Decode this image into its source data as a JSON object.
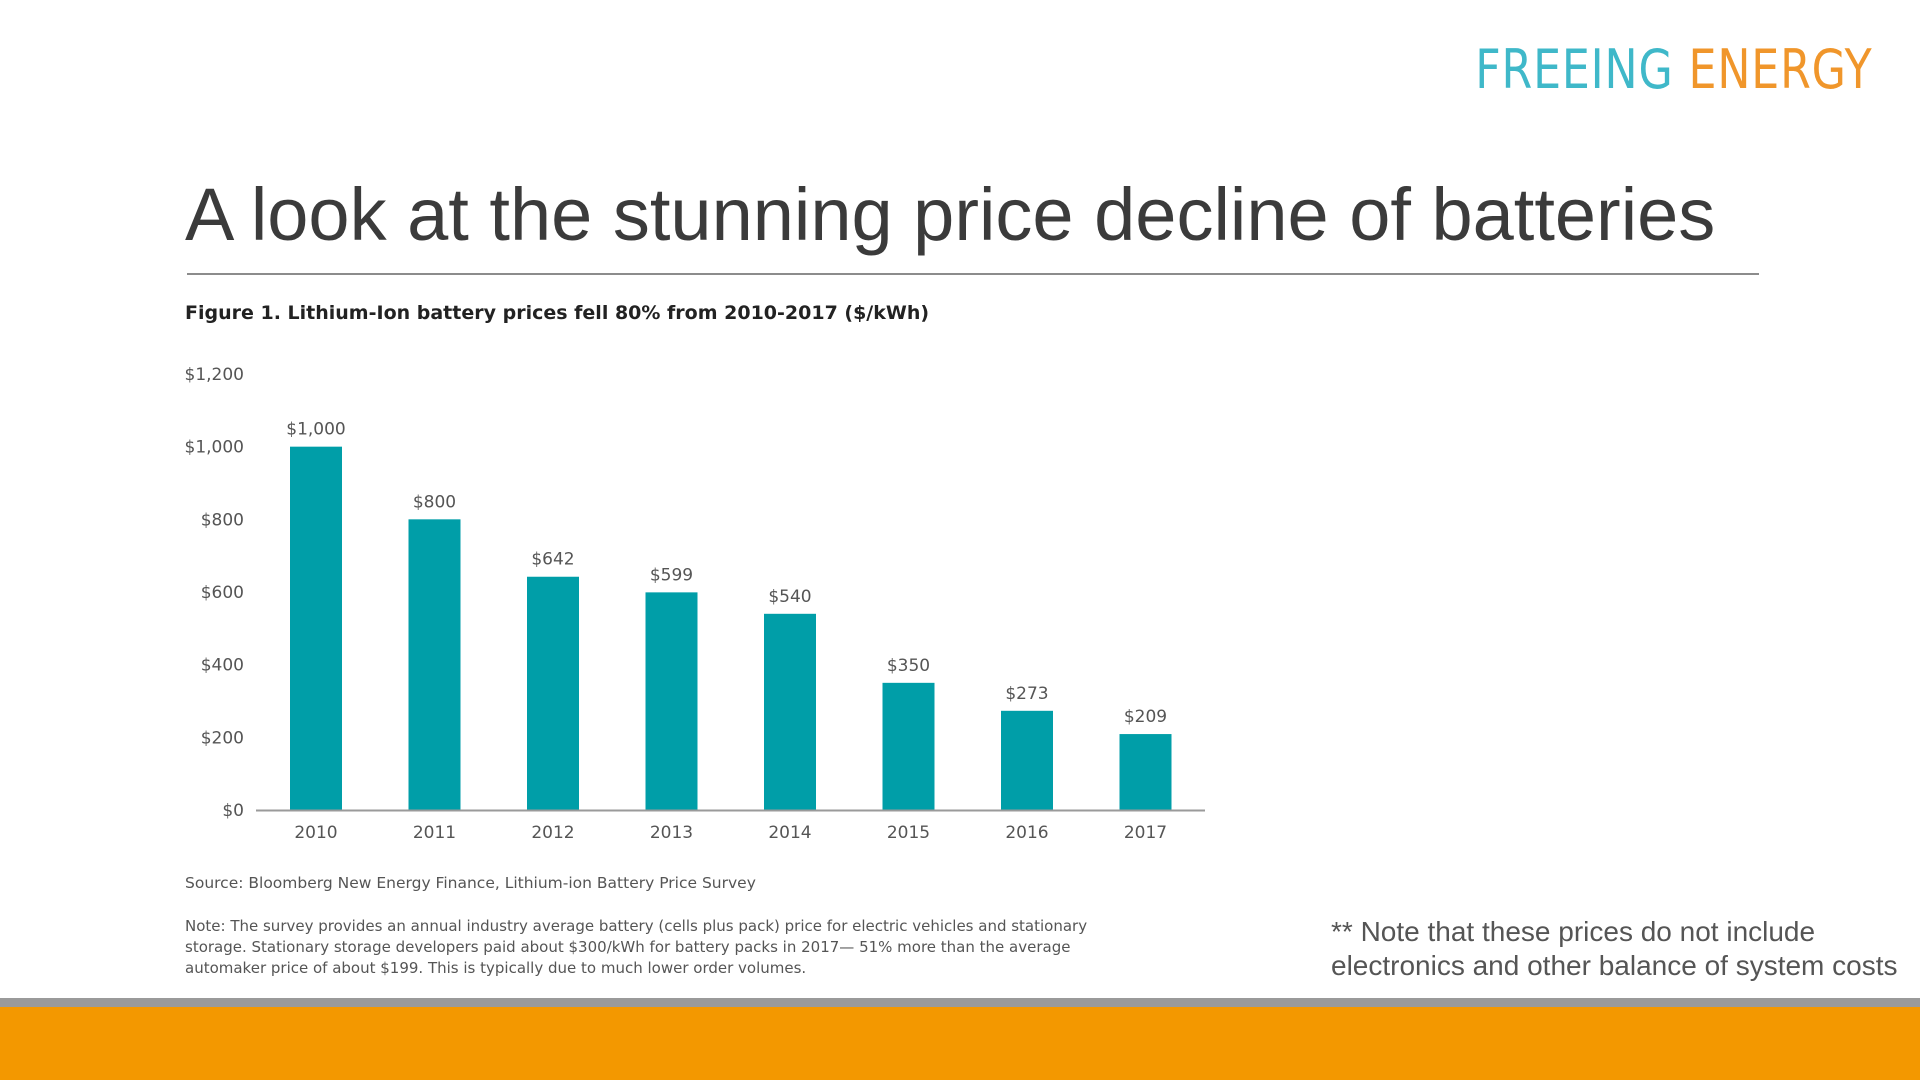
{
  "logo": {
    "word1": "FREEING",
    "word2": "ENERGY"
  },
  "slide": {
    "title": "A look at the stunning price decline of batteries",
    "side_note_line1": "** Note that these prices do not include",
    "side_note_line2": "electronics and other balance of system costs"
  },
  "colors": {
    "bar": "#009ea8",
    "logo_teal": "#3fb8c9",
    "logo_orange": "#f0962b",
    "footer": "#f39800"
  },
  "chart_data": {
    "type": "bar",
    "title": "Figure 1. Lithium-Ion battery prices fell 80% from 2010-2017 ($/kWh)",
    "categories": [
      "2010",
      "2011",
      "2012",
      "2013",
      "2014",
      "2015",
      "2016",
      "2017"
    ],
    "values": [
      1000,
      800,
      642,
      599,
      540,
      350,
      273,
      209
    ],
    "value_labels": [
      "$1,000",
      "$800",
      "$642",
      "$599",
      "$540",
      "$350",
      "$273",
      "$209"
    ],
    "yticks": [
      0,
      200,
      400,
      600,
      800,
      1000,
      1200
    ],
    "ytick_labels": [
      "$0",
      "$200",
      "$400",
      "$600",
      "$800",
      "$1,000",
      "$1,200"
    ],
    "ylim": [
      0,
      1200
    ],
    "xlabel": "",
    "ylabel": "",
    "grid": false,
    "source": "Source: Bloomberg New Energy Finance, Lithium-ion Battery Price Survey",
    "note": "Note: The survey provides an annual industry average battery (cells plus pack) price for electric vehicles and stationary storage. Stationary storage developers paid about $300/kWh for battery packs in 2017— 51% more than the average automaker price of about $199. This is typically due to much lower order volumes."
  }
}
